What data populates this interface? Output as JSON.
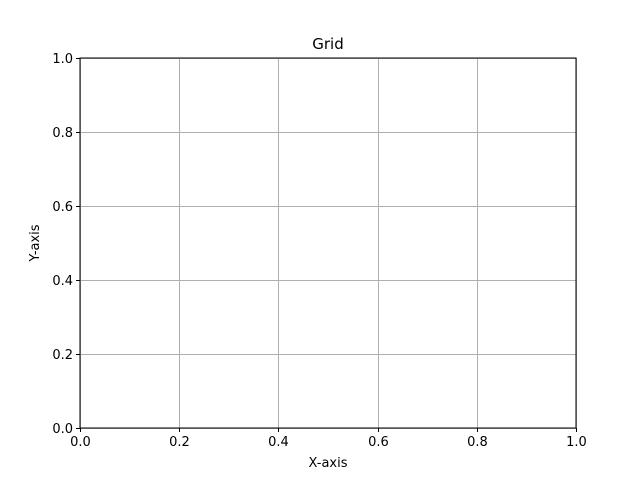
{
  "chart_data": {
    "type": "line",
    "title": "Grid",
    "xlabel": "X-axis",
    "ylabel": "Y-axis",
    "xlim": [
      0,
      1
    ],
    "ylim": [
      0,
      1
    ],
    "xticks": [
      0.0,
      0.2,
      0.4,
      0.6,
      0.8,
      1.0
    ],
    "yticks": [
      0.0,
      0.2,
      0.4,
      0.6,
      0.8,
      1.0
    ],
    "xtick_labels": [
      "0.0",
      "0.2",
      "0.4",
      "0.6",
      "0.8",
      "1.0"
    ],
    "ytick_labels": [
      "0.0",
      "0.2",
      "0.4",
      "0.6",
      "0.8",
      "1.0"
    ],
    "grid": true,
    "series": []
  }
}
